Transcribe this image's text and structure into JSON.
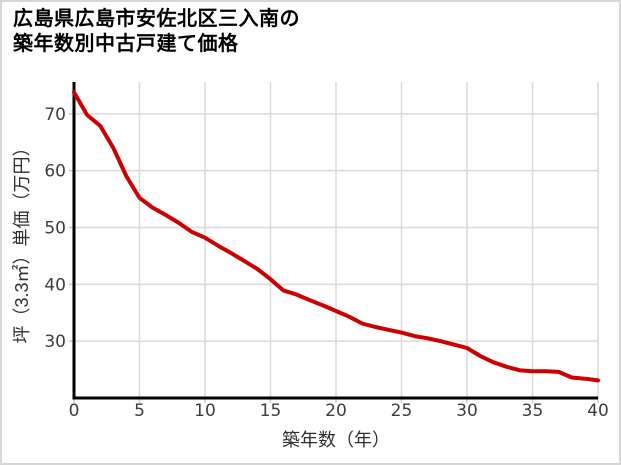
{
  "page": {
    "title_line1": "広島県広島市安佐北区三入南の",
    "title_line2": "築年数別中古戸建て価格"
  },
  "colors": {
    "line": "#cc0000",
    "grid": "#d9d9d9",
    "tick": "#c9c9c9",
    "axis": "#000000",
    "page_border": "#d6d6d6",
    "tick_text": "#3d3d3d"
  },
  "chart_data": {
    "type": "line",
    "title": "広島県広島市安佐北区三入南の築年数別中古戸建て価格",
    "xlabel": "築年数（年）",
    "ylabel": "坪（3.3㎡）単価（万円）",
    "xlim": [
      0,
      40
    ],
    "ylim": [
      20,
      75.6
    ],
    "xticks": [
      0,
      5,
      10,
      15,
      20,
      25,
      30,
      35,
      40
    ],
    "yticks": [
      30,
      40,
      50,
      60,
      70
    ],
    "grid": true,
    "legend": false,
    "x": [
      0,
      1,
      2,
      3,
      4,
      5,
      6,
      7,
      8,
      9,
      10,
      11,
      12,
      13,
      14,
      15,
      16,
      17,
      18,
      19,
      20,
      21,
      22,
      23,
      24,
      25,
      26,
      27,
      28,
      29,
      30,
      31,
      32,
      33,
      34,
      35,
      36,
      37,
      38,
      39,
      40
    ],
    "series": [
      {
        "color": "#cc0000",
        "values": [
          73.8,
          69.8,
          67.9,
          64.0,
          59.0,
          55.2,
          53.5,
          52.2,
          50.8,
          49.2,
          48.2,
          46.8,
          45.5,
          44.1,
          42.7,
          40.9,
          38.9,
          38.2,
          37.2,
          36.3,
          35.3,
          34.3,
          33.1,
          32.5,
          32.0,
          31.5,
          30.9,
          30.5,
          30.0,
          29.4,
          28.8,
          27.4,
          26.3,
          25.5,
          24.9,
          24.7,
          24.7,
          24.6,
          23.6,
          23.4,
          23.1
        ]
      }
    ]
  }
}
